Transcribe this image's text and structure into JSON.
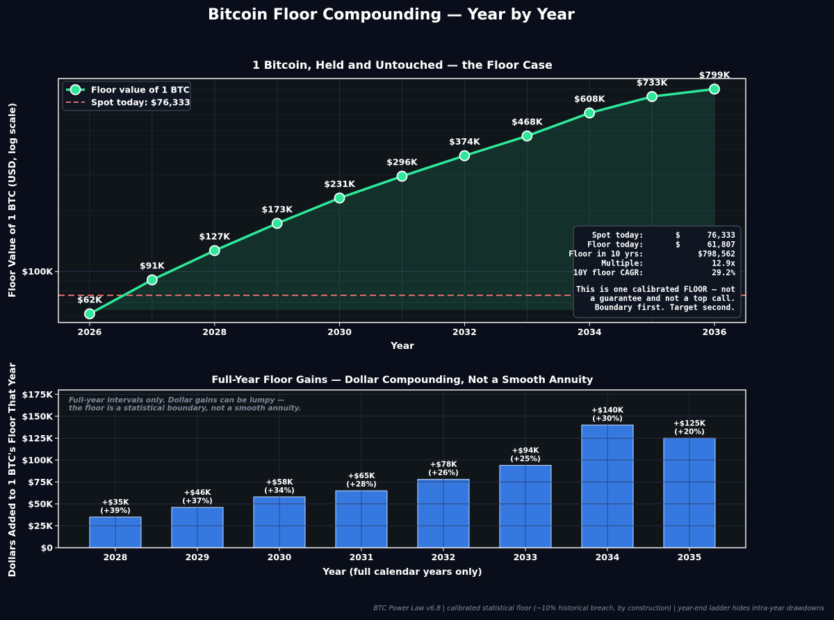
{
  "suptitle": "Bitcoin Floor Compounding — Year by Year",
  "footer": "BTC Power Law v6.8  |  calibrated statistical floor (~10% historical breach, by construction)  |  year-end ladder hides intra-year drawdowns",
  "colors": {
    "background": "#0a0e1a",
    "panel": "#10151a",
    "line": "#2ee89a",
    "spot": "#e06b6b",
    "bar": "#3578e0"
  },
  "chart_data": [
    {
      "type": "line",
      "title": "1 Bitcoin, Held and Untouched — the Floor Case",
      "xlabel": "Year",
      "ylabel": "Floor Value of 1 BTC (USD, log scale)",
      "yscale": "log",
      "ylim": [
        56000,
        900000
      ],
      "xlim": [
        2025.5,
        2036.5
      ],
      "grid": true,
      "legend_position": "upper-left",
      "x_ticks": [
        2026,
        2028,
        2030,
        2032,
        2034,
        2036
      ],
      "y_ticks": [
        {
          "value": 100000,
          "label": "$100K"
        }
      ],
      "x": [
        2026,
        2027,
        2028,
        2029,
        2030,
        2031,
        2032,
        2033,
        2034,
        2035,
        2036
      ],
      "series": [
        {
          "name": "Floor value of 1 BTC",
          "values": [
            61807,
            91000,
            127000,
            173000,
            231000,
            296000,
            374000,
            468000,
            608000,
            733000,
            798562
          ],
          "labels": [
            "$62K",
            "$91K",
            "$127K",
            "$173K",
            "$231K",
            "$296K",
            "$374K",
            "$468K",
            "$608K",
            "$733K",
            "$799K"
          ]
        }
      ],
      "reference_line": {
        "name": "Spot today: $76,333",
        "value": 76333
      },
      "info_box": {
        "rows": [
          [
            "Spot today:",
            "$",
            "76,333"
          ],
          [
            "Floor today:",
            "$",
            "61,807"
          ],
          [
            "Floor in 10 yrs:",
            "",
            "$798,562"
          ],
          [
            "Multiple:",
            "",
            "12.9x"
          ],
          [
            "10Y floor CAGR:",
            "",
            "29.2%"
          ]
        ],
        "note": [
          "This is one calibrated FLOOR — not",
          "a guarantee and not a top call.",
          "Boundary first. Target second."
        ]
      }
    },
    {
      "type": "bar",
      "title": "Full-Year Floor Gains — Dollar Compounding, Not a Smooth Annuity",
      "xlabel": "Year (full calendar years only)",
      "ylabel": "Dollars Added to 1 BTC's Floor That Year",
      "ylim": [
        0,
        180000
      ],
      "grid": true,
      "y_ticks": [
        {
          "value": 0,
          "label": "$0"
        },
        {
          "value": 25000,
          "label": "$25K"
        },
        {
          "value": 50000,
          "label": "$50K"
        },
        {
          "value": 75000,
          "label": "$75K"
        },
        {
          "value": 100000,
          "label": "$100K"
        },
        {
          "value": 125000,
          "label": "$125K"
        },
        {
          "value": 150000,
          "label": "$150K"
        },
        {
          "value": 175000,
          "label": "$175K"
        }
      ],
      "categories": [
        "2028",
        "2029",
        "2030",
        "2031",
        "2032",
        "2033",
        "2034",
        "2035"
      ],
      "values": [
        35000,
        46000,
        58000,
        65000,
        78000,
        94000,
        140000,
        125000
      ],
      "labels": [
        [
          "+$35K",
          "(+39%)"
        ],
        [
          "+$46K",
          "(+37%)"
        ],
        [
          "+$58K",
          "(+34%)"
        ],
        [
          "+$65K",
          "(+28%)"
        ],
        [
          "+$78K",
          "(+26%)"
        ],
        [
          "+$94K",
          "(+25%)"
        ],
        [
          "+$140K",
          "(+30%)"
        ],
        [
          "+$125K",
          "(+20%)"
        ]
      ],
      "annotation": [
        "Full-year intervals only. Dollar gains can be lumpy —",
        "the floor is a statistical boundary, not a smooth annuity."
      ]
    }
  ]
}
